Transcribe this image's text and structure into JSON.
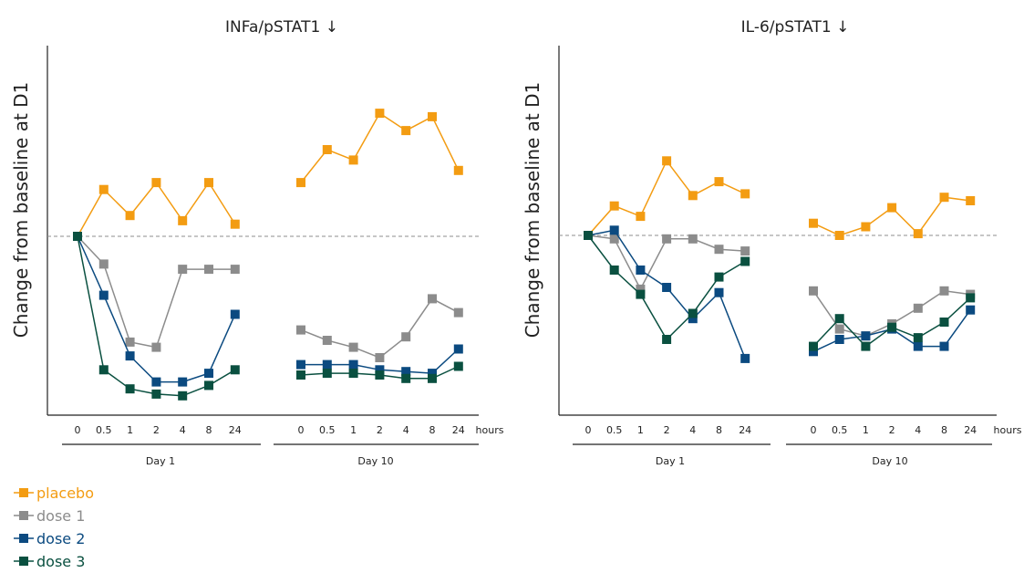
{
  "chart_data": [
    {
      "type": "line",
      "title": "INFa/pSTAT1 ↓",
      "ylabel": "Change from baseline at D1",
      "x_unit": "hours",
      "groups": [
        {
          "label": "Day 1",
          "ticks": [
            "0",
            "0.5",
            "1",
            "2",
            "4",
            "8",
            "24"
          ]
        },
        {
          "label": "Day 10",
          "ticks": [
            "0",
            "0.5",
            "1",
            "2",
            "4",
            "8",
            "24"
          ]
        }
      ],
      "reference_line": 0,
      "ylim": [
        -100,
        110
      ],
      "series": [
        {
          "name": "placebo",
          "color": "#f39c12",
          "day1": [
            0,
            27,
            12,
            31,
            9,
            31,
            7
          ],
          "day10": [
            31,
            50,
            44,
            71,
            61,
            69,
            38
          ]
        },
        {
          "name": "dose 1",
          "color": "#8c8c8c",
          "day1": [
            0,
            -16,
            -61,
            -64,
            -19,
            -19,
            -19
          ],
          "day10": [
            -54,
            -60,
            -64,
            -70,
            -58,
            -36,
            -44
          ]
        },
        {
          "name": "dose 2",
          "color": "#0b4a80",
          "day1": [
            0,
            -34,
            -69,
            -84,
            -84,
            -79,
            -45
          ],
          "day10": [
            -74,
            -74,
            -74,
            -77,
            -78,
            -79,
            -65
          ]
        },
        {
          "name": "dose 3",
          "color": "#0a5040",
          "day1": [
            0,
            -77,
            -88,
            -91,
            -92,
            -86,
            -77
          ],
          "day10": [
            -80,
            -79,
            -79,
            -80,
            -82,
            -82,
            -75
          ]
        }
      ]
    },
    {
      "type": "line",
      "title": "IL-6/pSTAT1 ↓",
      "ylabel": "Change from baseline at D1",
      "x_unit": "hours",
      "groups": [
        {
          "label": "Day 1",
          "ticks": [
            "0",
            "0.5",
            "1",
            "2",
            "4",
            "8",
            "24"
          ]
        },
        {
          "label": "Day 10",
          "ticks": [
            "0",
            "0.5",
            "1",
            "2",
            "4",
            "8",
            "24"
          ]
        }
      ],
      "reference_line": 0,
      "ylim": [
        -100,
        110
      ],
      "series": [
        {
          "name": "placebo",
          "color": "#f39c12",
          "day1": [
            0,
            17,
            11,
            43,
            23,
            31,
            24
          ],
          "day10": [
            7,
            0,
            5,
            16,
            1,
            22,
            20
          ]
        },
        {
          "name": "dose 1",
          "color": "#8c8c8c",
          "day1": [
            0,
            -2,
            -31,
            -2,
            -2,
            -8,
            -9
          ],
          "day10": [
            -32,
            -54,
            -58,
            -51,
            -42,
            -32,
            -34
          ]
        },
        {
          "name": "dose 2",
          "color": "#0b4a80",
          "day1": [
            0,
            3,
            -20,
            -30,
            -48,
            -33,
            -71
          ],
          "day10": [
            -67,
            -60,
            -58,
            -54,
            -64,
            -64,
            -43
          ]
        },
        {
          "name": "dose 3",
          "color": "#0a5040",
          "day1": [
            0,
            -20,
            -34,
            -60,
            -45,
            -24,
            -15
          ],
          "day10": [
            -64,
            -48,
            -64,
            -53,
            -59,
            -50,
            -36
          ]
        }
      ]
    }
  ],
  "legend": [
    "placebo",
    "dose 1",
    "dose 2",
    "dose 3"
  ]
}
